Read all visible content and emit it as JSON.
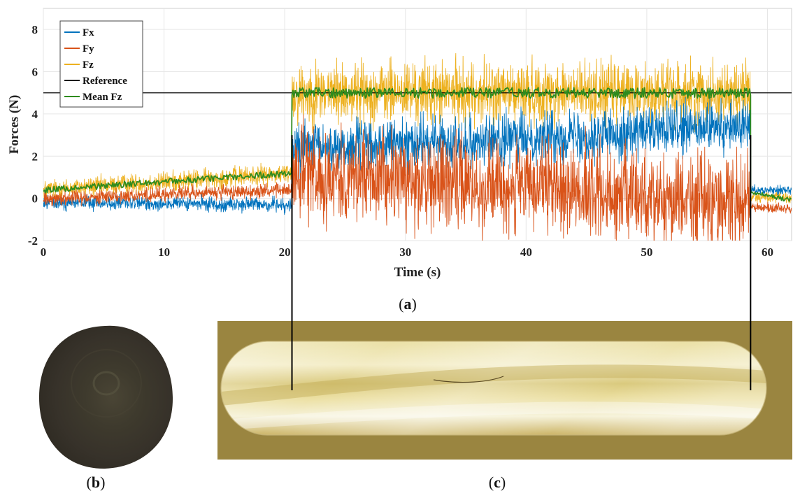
{
  "chart_data": {
    "type": "line",
    "xlabel": "Time (s)",
    "ylabel": "Forces (N)",
    "xlim": [
      0,
      62
    ],
    "ylim": [
      -2,
      9
    ],
    "xticks": [
      "0",
      "10",
      "20",
      "30",
      "40",
      "50",
      "60"
    ],
    "yticks": [
      "-2",
      "0",
      "2",
      "4",
      "6",
      "8"
    ],
    "grid": true,
    "legend_position": "top-left",
    "events": {
      "start_s": 20.6,
      "end_s": 58.6
    },
    "series": [
      {
        "name": "Fx",
        "color": "#0072BD",
        "segments": [
          {
            "x": [
              0,
              20.6
            ],
            "mean": [
              -0.2,
              -0.3
            ],
            "spread": 0.5
          },
          {
            "x": [
              20.6,
              58.6
            ],
            "mean": [
              2.3,
              3.4
            ],
            "spread": 1.8
          },
          {
            "x": [
              58.6,
              62
            ],
            "mean": [
              0.4,
              0.4
            ],
            "spread": 0.3
          }
        ]
      },
      {
        "name": "Fy",
        "color": "#D95319",
        "segments": [
          {
            "x": [
              0,
              20.6
            ],
            "mean": [
              0.0,
              0.4
            ],
            "spread": 0.5
          },
          {
            "x": [
              20.6,
              58.6
            ],
            "mean": [
              1.2,
              -0.2
            ],
            "spread": 3.2
          },
          {
            "x": [
              58.6,
              62
            ],
            "mean": [
              -0.4,
              -0.5
            ],
            "spread": 0.3
          }
        ]
      },
      {
        "name": "Fz",
        "color": "#EDB120",
        "segments": [
          {
            "x": [
              0,
              20.6
            ],
            "mean": [
              0.4,
              1.2
            ],
            "spread": 0.7
          },
          {
            "x": [
              20.6,
              58.6
            ],
            "mean": [
              5.0,
              5.0
            ],
            "spread": 2.2
          },
          {
            "x": [
              58.6,
              62
            ],
            "mean": [
              0.1,
              0.0
            ],
            "spread": 0.4
          }
        ]
      },
      {
        "name": "Reference",
        "color": "#000000",
        "x": [
          0,
          62
        ],
        "y": [
          5,
          5
        ]
      },
      {
        "name": "Mean Fz",
        "color": "#2E8B1E",
        "segments": [
          {
            "x": [
              0,
              20.6
            ],
            "mean": [
              0.4,
              1.2
            ],
            "spread": 0.15
          },
          {
            "x": [
              20.6,
              58.6
            ],
            "mean": [
              5.0,
              5.0
            ],
            "spread": 0.25
          },
          {
            "x": [
              58.6,
              62
            ],
            "mean": [
              0.3,
              -0.1
            ],
            "spread": 0.1
          }
        ]
      }
    ]
  },
  "panels": {
    "a_label_open": "(",
    "a_label_letter": "a",
    "a_label_close": ")",
    "b_label_open": "(",
    "b_label_letter": "b",
    "b_label_close": ")",
    "c_label_open": "(",
    "c_label_letter": "c",
    "c_label_close": ")"
  }
}
